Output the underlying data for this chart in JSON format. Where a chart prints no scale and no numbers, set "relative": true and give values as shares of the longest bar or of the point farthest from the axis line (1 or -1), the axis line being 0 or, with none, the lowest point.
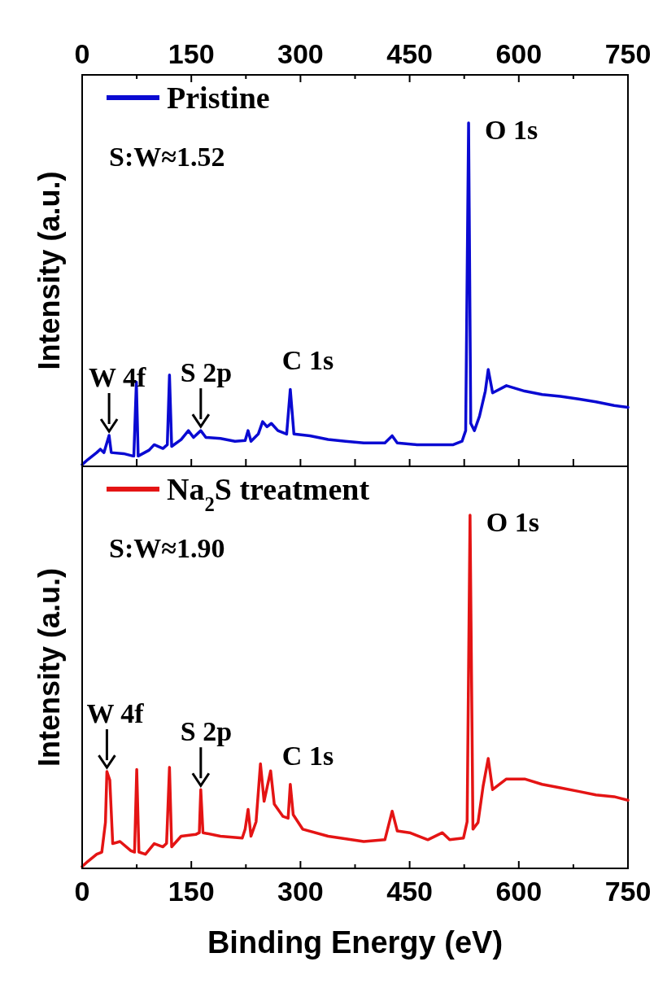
{
  "chart_data": [
    {
      "type": "line",
      "relative": true,
      "ylabel": "Intensity (a.u.)",
      "xlim": [
        0,
        750
      ],
      "xticks": [
        0,
        {
          "value": 75,
          "label": null
        },
        150,
        {
          "value": 225,
          "label": null
        },
        300,
        {
          "value": 375,
          "label": null
        },
        450,
        {
          "value": 525,
          "label": null
        },
        600,
        {
          "value": 675,
          "label": null
        },
        750
      ],
      "legend": "top left",
      "grid": false,
      "annotations": [
        {
          "text": "W 4f",
          "x": 37,
          "y": 0.09
        },
        {
          "text": "S 2p",
          "x": 163,
          "y": 0.104
        },
        {
          "text": "C 1s",
          "x": 286,
          "y": 0.224
        },
        {
          "text": "O 1s",
          "x": 531,
          "y": 1
        },
        "S:W≈1.52"
      ],
      "series": [
        {
          "name": "Pristine",
          "color": "#0a0ad2",
          "x": [
            0,
            8,
            20,
            25,
            30,
            37,
            40,
            57,
            70,
            71,
            74.5,
            77,
            92,
            99,
            111,
            117,
            120,
            123,
            136,
            146,
            153,
            163,
            170,
            190,
            210,
            224,
            228,
            232,
            242,
            248,
            254,
            260,
            269,
            281,
            286,
            291,
            313,
            338,
            362,
            387,
            416,
            426,
            433,
            460,
            485,
            510,
            522,
            527,
            531,
            534,
            539,
            546,
            554,
            558,
            564,
            583,
            608,
            632,
            657,
            682,
            706,
            731,
            750
          ],
          "values": [
            0.005,
            0.02,
            0.04,
            0.05,
            0.04,
            0.09,
            0.04,
            0.037,
            0.03,
            0.03,
            0.245,
            0.03,
            0.047,
            0.063,
            0.052,
            0.063,
            0.266,
            0.058,
            0.078,
            0.104,
            0.084,
            0.104,
            0.084,
            0.081,
            0.073,
            0.075,
            0.104,
            0.073,
            0.094,
            0.13,
            0.115,
            0.125,
            0.104,
            0.094,
            0.224,
            0.094,
            0.089,
            0.078,
            0.073,
            0.068,
            0.068,
            0.089,
            0.068,
            0.063,
            0.063,
            0.063,
            0.073,
            0.104,
            1,
            0.125,
            0.104,
            0.146,
            0.219,
            0.282,
            0.214,
            0.235,
            0.219,
            0.209,
            0.204,
            0.196,
            0.188,
            0.177,
            0.172
          ]
        }
      ]
    },
    {
      "type": "line",
      "relative": true,
      "ylabel": "Intensity (a.u.)",
      "xlabel": "Binding Energy (eV)",
      "xlim": [
        0,
        750
      ],
      "xticks": [
        0,
        {
          "value": 75,
          "label": null
        },
        150,
        {
          "value": 225,
          "label": null
        },
        300,
        {
          "value": 375,
          "label": null
        },
        450,
        {
          "value": 525,
          "label": null
        },
        600,
        {
          "value": 675,
          "label": null
        },
        750
      ],
      "legend": "top left",
      "grid": false,
      "annotations": [
        {
          "text": "W 4f",
          "x": 34,
          "y": 0.274
        },
        {
          "text": "S 2p",
          "x": 163,
          "y": 0.223
        },
        {
          "text": "C 1s",
          "x": 286,
          "y": 0.238
        },
        {
          "text": "O 1s",
          "x": 533,
          "y": 1
        },
        "S:W≈1.90"
      ],
      "series": [
        {
          "name": "Na$_{2}$S treatment",
          "color": "#e41414",
          "x": [
            0,
            8,
            20,
            27,
            32,
            34,
            38,
            42,
            52,
            67,
            72,
            75,
            78,
            87,
            99,
            111,
            116,
            120,
            123,
            136,
            156,
            161,
            163,
            166,
            190,
            220,
            224,
            228,
            232,
            239,
            245,
            250,
            259,
            264,
            276,
            283,
            286,
            290,
            303,
            338,
            387,
            416,
            426,
            433,
            450,
            475,
            495,
            505,
            524,
            529,
            533,
            537,
            544,
            551,
            558,
            564,
            583,
            608,
            632,
            657,
            682,
            706,
            731,
            750
          ],
          "values": [
            0.005,
            0.02,
            0.04,
            0.046,
            0.13,
            0.274,
            0.25,
            0.07,
            0.076,
            0.05,
            0.046,
            0.28,
            0.046,
            0.04,
            0.07,
            0.061,
            0.071,
            0.286,
            0.061,
            0.091,
            0.096,
            0.101,
            0.223,
            0.101,
            0.091,
            0.086,
            0.111,
            0.167,
            0.091,
            0.132,
            0.296,
            0.19,
            0.276,
            0.182,
            0.147,
            0.142,
            0.238,
            0.152,
            0.111,
            0.091,
            0.076,
            0.081,
            0.162,
            0.106,
            0.101,
            0.081,
            0.101,
            0.081,
            0.086,
            0.132,
            1,
            0.111,
            0.13,
            0.233,
            0.311,
            0.223,
            0.253,
            0.253,
            0.238,
            0.228,
            0.218,
            0.208,
            0.203,
            0.193
          ]
        }
      ]
    }
  ]
}
